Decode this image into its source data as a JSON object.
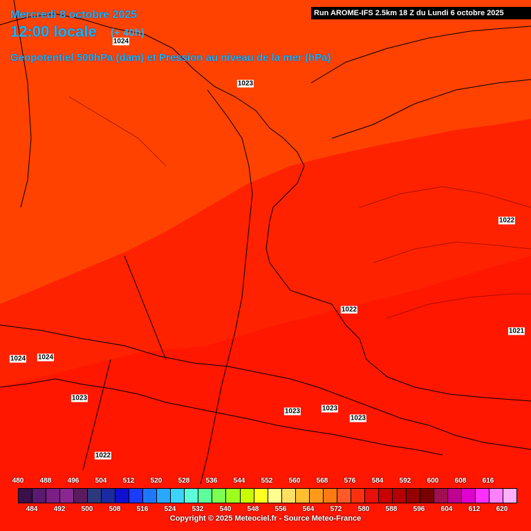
{
  "header": {
    "date": "Mercredi 8 octobre 2025",
    "time": "12:00 locale",
    "offset": "(+ 40h)",
    "parameter": "Geopotentiel 500hPa (dam) et Pression au niveau de la mer (hPa)",
    "run": "Run AROME-IFS 2.5km 18 Z du Lundi 6 octobre 2025"
  },
  "pressure_labels": [
    "1024",
    "1023",
    "1022",
    "1022",
    "1021",
    "1024",
    "1024",
    "1023",
    "1023",
    "1023",
    "1023",
    "1022"
  ],
  "legend": {
    "top_ticks": [
      "480",
      "488",
      "496",
      "504",
      "512",
      "520",
      "528",
      "536",
      "544",
      "552",
      "560",
      "568",
      "576",
      "584",
      "592",
      "600",
      "608",
      "616"
    ],
    "bottom_ticks": [
      "484",
      "492",
      "500",
      "508",
      "516",
      "524",
      "532",
      "540",
      "548",
      "556",
      "564",
      "572",
      "580",
      "588",
      "596",
      "604",
      "612",
      "620"
    ],
    "colors": [
      "#3a0f4a",
      "#5a1a6e",
      "#7a1f85",
      "#8a2690",
      "#5a1c5e",
      "#2a3a7a",
      "#1a2aa0",
      "#1010d0",
      "#1a3cff",
      "#1e78ff",
      "#28a8ff",
      "#3cd4ff",
      "#5cffd8",
      "#5cff9c",
      "#7cff50",
      "#9cff20",
      "#c8ff00",
      "#ffff20",
      "#ffff90",
      "#ffe060",
      "#ffc030",
      "#ff9a18",
      "#ff7a10",
      "#ff5a28",
      "#ff3010",
      "#e81008",
      "#c80000",
      "#b40000",
      "#960000",
      "#7a0000",
      "#a01050",
      "#c00090",
      "#e000d0",
      "#ff30ff",
      "#ff80ff",
      "#ffb0ff"
    ],
    "copyright": "Copyright © 2025 Meteociel.fr - Source Meteo-France"
  },
  "zones": {
    "north": "#ff4000",
    "middle": "#ff2a00",
    "south": "#ff1000"
  }
}
